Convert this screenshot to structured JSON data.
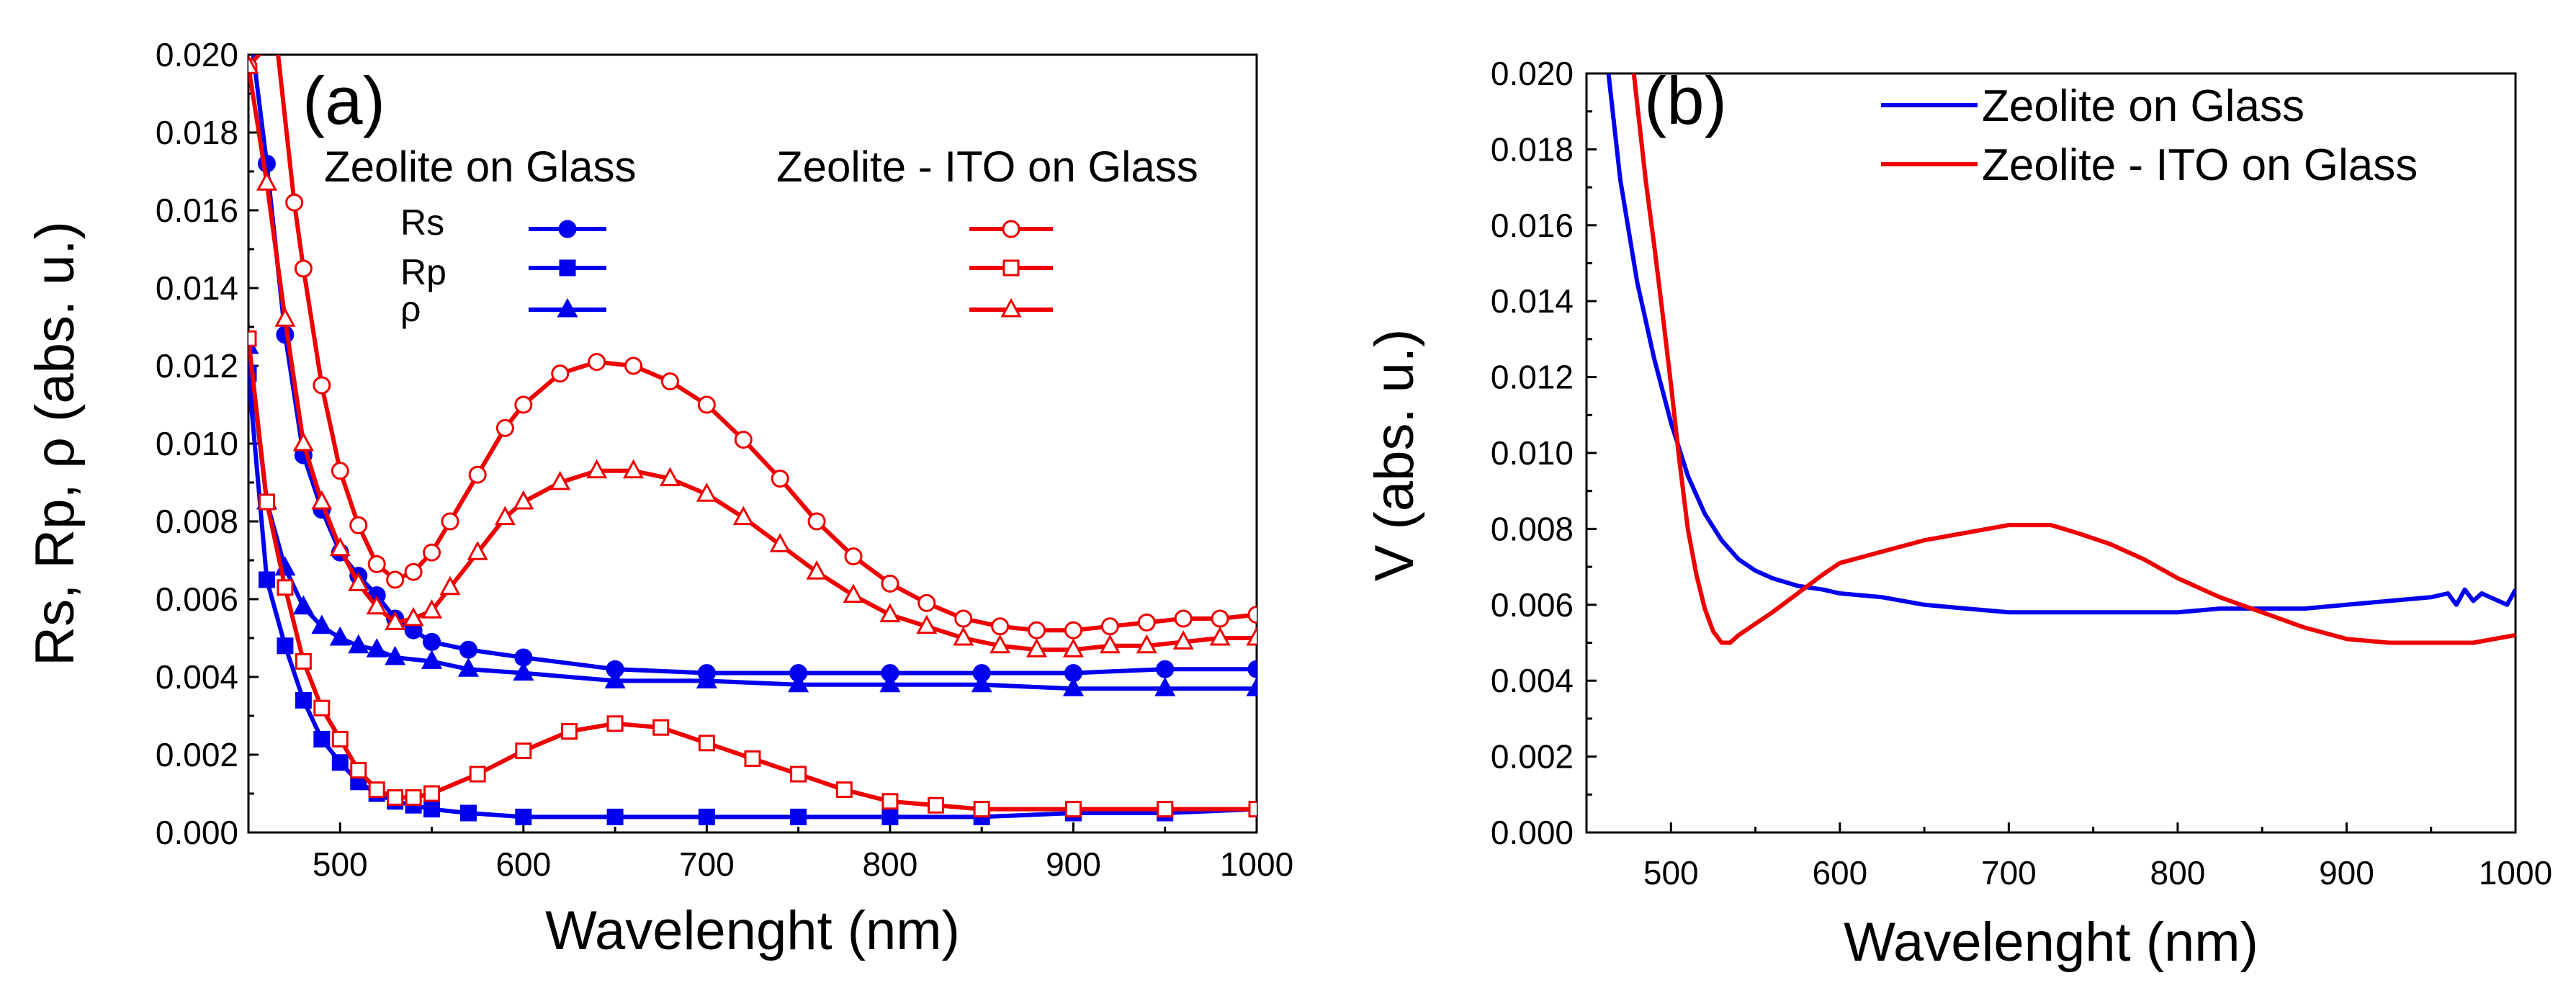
{
  "chart_data": [
    {
      "type": "line",
      "panel_label": "(a)",
      "xlabel": "Wavelenght (nm)",
      "ylabel": "Rs, Rp, ρ (abs. u.)",
      "xlim": [
        450,
        1000
      ],
      "ylim": [
        0.0,
        0.02
      ],
      "xticks": [
        "500",
        "600",
        "700",
        "800",
        "900",
        "1000"
      ],
      "yticks": [
        "0.000",
        "0.002",
        "0.004",
        "0.006",
        "0.008",
        "0.010",
        "0.012",
        "0.014",
        "0.016",
        "0.018",
        "0.020"
      ],
      "legend": {
        "group_titles": [
          "Zeolite on Glass",
          "Zeolite - ITO on Glass"
        ],
        "row_labels": [
          "Rs",
          "Rp",
          "ρ"
        ]
      },
      "series": [
        {
          "name": "Rs - Zeolite on Glass",
          "color": "#0000ee",
          "marker": "circle",
          "filled": true,
          "x": [
            450,
            460,
            470,
            480,
            490,
            500,
            510,
            520,
            530,
            540,
            550,
            570,
            600,
            650,
            700,
            750,
            800,
            850,
            900,
            950,
            1000
          ],
          "y": [
            0.021,
            0.0172,
            0.0128,
            0.0097,
            0.0083,
            0.0072,
            0.0066,
            0.0061,
            0.0055,
            0.0052,
            0.0049,
            0.0047,
            0.0045,
            0.0042,
            0.0041,
            0.0041,
            0.0041,
            0.0041,
            0.0041,
            0.0042,
            0.0042
          ]
        },
        {
          "name": "Rp - Zeolite on Glass",
          "color": "#0000ee",
          "marker": "square",
          "filled": true,
          "x": [
            450,
            460,
            470,
            480,
            490,
            500,
            510,
            520,
            530,
            540,
            550,
            570,
            600,
            650,
            700,
            750,
            800,
            850,
            900,
            950,
            1000
          ],
          "y": [
            0.0118,
            0.0065,
            0.0048,
            0.0034,
            0.0024,
            0.0018,
            0.0013,
            0.001,
            0.0008,
            0.0007,
            0.0006,
            0.0005,
            0.0004,
            0.0004,
            0.0004,
            0.0004,
            0.0004,
            0.0004,
            0.0005,
            0.0005,
            0.0006
          ]
        },
        {
          "name": "ρ - Zeolite on Glass",
          "color": "#0000ee",
          "marker": "triangle",
          "filled": true,
          "x": [
            450,
            460,
            470,
            480,
            490,
            500,
            510,
            520,
            530,
            550,
            570,
            600,
            650,
            700,
            750,
            800,
            850,
            900,
            950,
            1000
          ],
          "y": [
            0.0125,
            0.0085,
            0.0068,
            0.0058,
            0.0053,
            0.005,
            0.0048,
            0.0047,
            0.0045,
            0.0044,
            0.0042,
            0.0041,
            0.0039,
            0.0039,
            0.0038,
            0.0038,
            0.0038,
            0.0037,
            0.0037,
            0.0037
          ]
        },
        {
          "name": "Rs - Zeolite - ITO on Glass",
          "color": "#ee0000",
          "marker": "circle",
          "filled": false,
          "x": [
            450,
            465,
            475,
            480,
            490,
            500,
            510,
            520,
            530,
            540,
            550,
            560,
            575,
            590,
            600,
            620,
            640,
            660,
            680,
            700,
            720,
            740,
            760,
            780,
            800,
            820,
            840,
            860,
            880,
            900,
            920,
            940,
            960,
            980,
            1000
          ],
          "y": [
            0.0197,
            0.0205,
            0.0162,
            0.0145,
            0.0115,
            0.0093,
            0.0079,
            0.0069,
            0.0065,
            0.0067,
            0.0072,
            0.008,
            0.0092,
            0.0104,
            0.011,
            0.0118,
            0.0121,
            0.012,
            0.0116,
            0.011,
            0.0101,
            0.0091,
            0.008,
            0.0071,
            0.0064,
            0.0059,
            0.0055,
            0.0053,
            0.0052,
            0.0052,
            0.0053,
            0.0054,
            0.0055,
            0.0055,
            0.0056
          ]
        },
        {
          "name": "Rp - Zeolite - ITO on Glass",
          "color": "#ee0000",
          "marker": "square",
          "filled": false,
          "x": [
            450,
            460,
            470,
            480,
            490,
            500,
            510,
            520,
            530,
            540,
            550,
            575,
            600,
            625,
            650,
            675,
            700,
            725,
            750,
            775,
            800,
            825,
            850,
            900,
            950,
            1000
          ],
          "y": [
            0.0127,
            0.0085,
            0.0063,
            0.0044,
            0.0032,
            0.0024,
            0.0016,
            0.0011,
            0.0009,
            0.0009,
            0.001,
            0.0015,
            0.0021,
            0.0026,
            0.0028,
            0.0027,
            0.0023,
            0.0019,
            0.0015,
            0.0011,
            0.0008,
            0.0007,
            0.0006,
            0.0006,
            0.0006,
            0.0006
          ]
        },
        {
          "name": "ρ - Zeolite - ITO on Glass",
          "color": "#ee0000",
          "marker": "triangle",
          "filled": false,
          "x": [
            450,
            460,
            470,
            480,
            490,
            500,
            510,
            520,
            530,
            540,
            550,
            560,
            575,
            590,
            600,
            620,
            640,
            660,
            680,
            700,
            720,
            740,
            760,
            780,
            800,
            820,
            840,
            860,
            880,
            900,
            920,
            940,
            960,
            980,
            1000
          ],
          "y": [
            0.0197,
            0.0167,
            0.0132,
            0.01,
            0.0085,
            0.0073,
            0.0064,
            0.0058,
            0.0054,
            0.0055,
            0.0057,
            0.0063,
            0.0072,
            0.0081,
            0.0085,
            0.009,
            0.0093,
            0.0093,
            0.0091,
            0.0087,
            0.0081,
            0.0074,
            0.0067,
            0.0061,
            0.0056,
            0.0053,
            0.005,
            0.0048,
            0.0047,
            0.0047,
            0.0048,
            0.0048,
            0.0049,
            0.005,
            0.005
          ]
        }
      ]
    },
    {
      "type": "line",
      "panel_label": "(b)",
      "xlabel": "Wavelenght (nm)",
      "ylabel": "V (abs. u.)",
      "xlim": [
        450,
        1000
      ],
      "ylim": [
        0.0,
        0.02
      ],
      "xticks": [
        "500",
        "600",
        "700",
        "800",
        "900",
        "1000"
      ],
      "yticks": [
        "0.000",
        "0.002",
        "0.004",
        "0.006",
        "0.008",
        "0.010",
        "0.012",
        "0.014",
        "0.016",
        "0.018",
        "0.020"
      ],
      "legend": {
        "entries": [
          "Zeolite on Glass",
          "Zeolite - ITO on Glass"
        ]
      },
      "series": [
        {
          "name": "Zeolite on Glass",
          "color": "#0000ee",
          "x": [
            463,
            470,
            480,
            490,
            500,
            510,
            520,
            530,
            540,
            550,
            560,
            575,
            590,
            600,
            625,
            650,
            675,
            700,
            725,
            750,
            775,
            800,
            825,
            850,
            875,
            900,
            925,
            950,
            960,
            965,
            970,
            975,
            980,
            985,
            990,
            995,
            1000
          ],
          "y": [
            0.02,
            0.0172,
            0.0145,
            0.0125,
            0.0108,
            0.0094,
            0.0084,
            0.0077,
            0.0072,
            0.0069,
            0.0067,
            0.0065,
            0.0064,
            0.0063,
            0.0062,
            0.006,
            0.0059,
            0.0058,
            0.0058,
            0.0058,
            0.0058,
            0.0058,
            0.0059,
            0.0059,
            0.0059,
            0.006,
            0.0061,
            0.0062,
            0.0063,
            0.006,
            0.0064,
            0.0061,
            0.0063,
            0.0062,
            0.0061,
            0.006,
            0.0064
          ]
        },
        {
          "name": "Zeolite - ITO on Glass",
          "color": "#ee0000",
          "x": [
            478,
            485,
            490,
            495,
            500,
            505,
            510,
            515,
            520,
            525,
            530,
            535,
            540,
            550,
            560,
            575,
            590,
            600,
            625,
            650,
            675,
            700,
            725,
            740,
            760,
            780,
            800,
            825,
            850,
            875,
            900,
            925,
            950,
            975,
            1000
          ],
          "y": [
            0.02,
            0.0172,
            0.0155,
            0.0137,
            0.0118,
            0.0098,
            0.008,
            0.0068,
            0.0059,
            0.0053,
            0.005,
            0.005,
            0.0052,
            0.0055,
            0.0058,
            0.0063,
            0.0068,
            0.0071,
            0.0074,
            0.0077,
            0.0079,
            0.0081,
            0.0081,
            0.0079,
            0.0076,
            0.0072,
            0.0067,
            0.0062,
            0.0058,
            0.0054,
            0.0051,
            0.005,
            0.005,
            0.005,
            0.0052
          ]
        }
      ]
    }
  ]
}
